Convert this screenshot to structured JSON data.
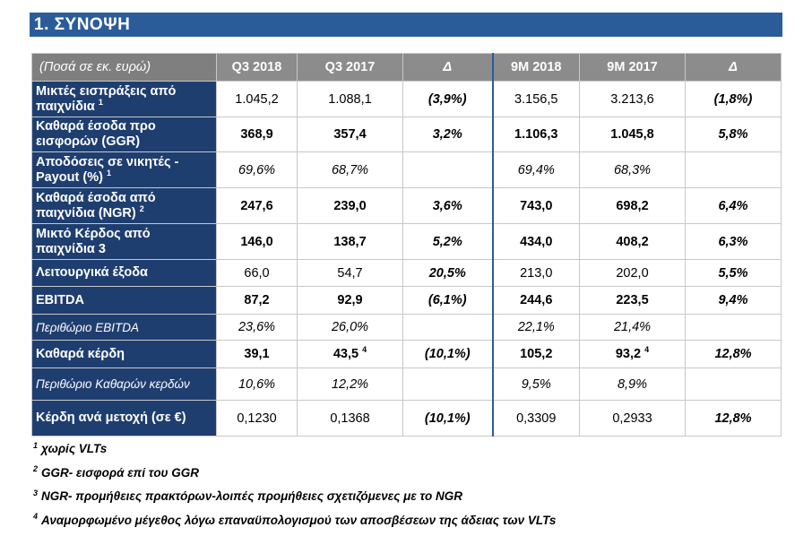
{
  "section": {
    "title": "1.  ΣΥΝΟΨΗ"
  },
  "table": {
    "headers": [
      "(Ποσά σε εκ. ευρώ)",
      "Q3 2018",
      "Q3 2017",
      "Δ",
      "9M 2018",
      "9M 2017",
      "Δ"
    ],
    "rows": [
      {
        "label": "Μικτές εισπράξεις από παιχνίδια",
        "sup": "1",
        "values": [
          "1.045,2",
          "1.088,1",
          "(3,9%)",
          "3.156,5",
          "3.213,6",
          "(1,8%)"
        ],
        "sups": [
          "",
          "",
          "",
          "",
          "",
          ""
        ]
      },
      {
        "label": "Καθαρά έσοδα προ εισφορών (GGR)",
        "sup": "",
        "values": [
          "368,9",
          "357,4",
          "3,2%",
          "1.106,3",
          "1.045,8",
          "5,8%"
        ],
        "sups": [
          "",
          "",
          "",
          "",
          "",
          ""
        ]
      },
      {
        "label": "Αποδόσεις σε νικητές - Payout (%)",
        "sup": "1",
        "values": [
          "69,6%",
          "68,7%",
          "",
          "69,4%",
          "68,3%",
          ""
        ],
        "sups": [
          "",
          "",
          "",
          "",
          "",
          ""
        ]
      },
      {
        "label": "Καθαρά έσοδα από παιχνίδια (NGR)",
        "sup": "2",
        "values": [
          "247,6",
          "239,0",
          "3,6%",
          "743,0",
          "698,2",
          "6,4%"
        ],
        "sups": [
          "",
          "",
          "",
          "",
          "",
          ""
        ]
      },
      {
        "label": "Μικτό Κέρδος από παιχνίδια 3",
        "sup": "",
        "values": [
          "146,0",
          "138,7",
          "5,2%",
          "434,0",
          "408,2",
          "6,3%"
        ],
        "sups": [
          "",
          "",
          "",
          "",
          "",
          ""
        ]
      },
      {
        "label": "Λειτουργικά έξοδα",
        "sup": "",
        "values": [
          "66,0",
          "54,7",
          "20,5%",
          "213,0",
          "202,0",
          "5,5%"
        ],
        "sups": [
          "",
          "",
          "",
          "",
          "",
          ""
        ]
      },
      {
        "label": "EBITDA",
        "sup": "",
        "values": [
          "87,2",
          "92,9",
          "(6,1%)",
          "244,6",
          "223,5",
          "9,4%"
        ],
        "sups": [
          "",
          "",
          "",
          "",
          "",
          ""
        ]
      },
      {
        "label": "Περιθώριο EBITDA",
        "sup": "",
        "values": [
          "23,6%",
          "26,0%",
          "",
          "22,1%",
          "21,4%",
          ""
        ],
        "sups": [
          "",
          "",
          "",
          "",
          "",
          ""
        ]
      },
      {
        "label": "Καθαρά κέρδη",
        "sup": "",
        "values": [
          "39,1",
          "43,5",
          "(10,1%)",
          "105,2",
          "93,2",
          "12,8%"
        ],
        "sups": [
          "",
          "4",
          "",
          "",
          "4",
          ""
        ]
      },
      {
        "label": "Περιθώριο Καθαρών κερδών",
        "sup": "",
        "values": [
          "10,6%",
          "12,2%",
          "",
          "9,5%",
          "8,9%",
          ""
        ],
        "sups": [
          "",
          "",
          "",
          "",
          "",
          ""
        ]
      },
      {
        "label": "Κέρδη ανά μετοχή (σε €)",
        "sup": "",
        "values": [
          "0,1230",
          "0,1368",
          "(10,1%)",
          "0,3309",
          "0,2933",
          "12,8%"
        ],
        "sups": [
          "",
          "",
          "",
          "",
          "",
          ""
        ]
      }
    ]
  },
  "footnotes": [
    {
      "num": "1",
      "text": "χωρίς VLTs"
    },
    {
      "num": "2",
      "text": "GGR- εισφορά επί του GGR"
    },
    {
      "num": "3",
      "text": "NGR- προμήθειες πρακτόρων-λοιπές προμήθειες σχετιζόμενες με το NGR"
    },
    {
      "num": "4",
      "text": "Αναμορφωμένο μέγεθος λόγω επαναϋπολογισμού των αποσβέσεων της άδειας των VLTs"
    }
  ]
}
